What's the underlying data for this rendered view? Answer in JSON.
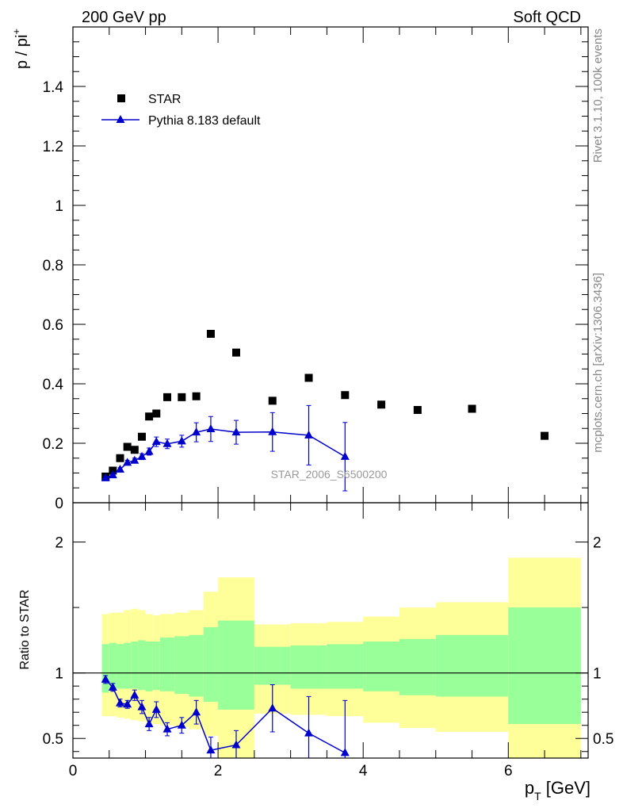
{
  "header": {
    "left": "200 GeV pp",
    "right": "Soft QCD"
  },
  "side_labels": {
    "rivet": "Rivet 3.1.10,  100k events",
    "source": "mcplots.cern.ch [arXiv:1306.3436]"
  },
  "watermark": "STAR_2006_S6500200",
  "colors": {
    "data": "#000000",
    "mc": "#0000cc",
    "band_inner": "#99ff99",
    "band_outer": "#ffff99"
  },
  "chart_data": [
    {
      "type": "scatter",
      "panel": "main",
      "ylabel_base": "p / pi",
      "ylabel_sup": "+",
      "xlim": [
        0,
        7.1
      ],
      "ylim": [
        0,
        1.6
      ],
      "yticks": [
        0,
        0.2,
        0.4,
        0.6,
        0.8,
        1,
        1.2,
        1.4
      ],
      "ytick_labels": [
        "0",
        "0.2",
        "0.4",
        "0.6",
        "0.8",
        "1",
        "1.2",
        "1.4"
      ],
      "legend": {
        "position": "top-left",
        "entries": [
          "STAR",
          "Pythia 8.183 default"
        ]
      },
      "series": [
        {
          "name": "STAR",
          "marker": "square",
          "x": [
            0.45,
            0.55,
            0.65,
            0.75,
            0.85,
            0.95,
            1.05,
            1.15,
            1.3,
            1.5,
            1.7,
            1.9,
            2.25,
            2.75,
            3.25,
            3.75,
            4.25,
            4.75,
            5.5,
            6.5
          ],
          "y": [
            0.088,
            0.108,
            0.15,
            0.188,
            0.178,
            0.222,
            0.29,
            0.3,
            0.355,
            0.355,
            0.358,
            0.568,
            0.505,
            0.343,
            0.42,
            0.362,
            0.33,
            0.312,
            0.316,
            0.225
          ]
        },
        {
          "name": "Pythia 8.183 default",
          "marker": "triangle",
          "x": [
            0.45,
            0.55,
            0.65,
            0.75,
            0.85,
            0.95,
            1.05,
            1.15,
            1.3,
            1.5,
            1.7,
            1.9,
            2.25,
            2.75,
            3.25,
            3.75
          ],
          "y": [
            0.083,
            0.093,
            0.112,
            0.135,
            0.142,
            0.155,
            0.172,
            0.205,
            0.198,
            0.207,
            0.237,
            0.248,
            0.237,
            0.238,
            0.227,
            0.155
          ],
          "yerr": [
            0.004,
            0.004,
            0.006,
            0.008,
            0.008,
            0.01,
            0.012,
            0.016,
            0.016,
            0.02,
            0.032,
            0.042,
            0.04,
            0.065,
            0.1,
            0.115
          ]
        }
      ]
    },
    {
      "type": "line",
      "panel": "ratio",
      "ylabel": "Ratio to STAR",
      "xlabel_base": "p",
      "xlabel_sub": "T",
      "xlabel_unit": " [GeV]",
      "xlim": [
        0,
        7.1
      ],
      "ylim": [
        0.35,
        2.3
      ],
      "xticks": [
        0,
        2,
        4,
        6
      ],
      "xtick_labels": [
        "0",
        "2",
        "4",
        "6"
      ],
      "yticks": [
        0.5,
        1,
        2
      ],
      "ytick_labels": [
        "0.5",
        "1",
        "2"
      ],
      "bands": {
        "edges": [
          0.4,
          0.5,
          0.6,
          0.7,
          0.8,
          0.9,
          1.0,
          1.1,
          1.2,
          1.4,
          1.6,
          1.8,
          2.0,
          2.5,
          3.0,
          3.5,
          4.0,
          4.5,
          5.0,
          6.0,
          7.0
        ],
        "inner_lo": [
          0.85,
          0.87,
          0.88,
          0.88,
          0.88,
          0.87,
          0.86,
          0.87,
          0.86,
          0.84,
          0.82,
          0.78,
          0.72,
          0.91,
          0.88,
          0.88,
          0.86,
          0.83,
          0.82,
          0.61
        ],
        "inner_hi": [
          1.22,
          1.23,
          1.22,
          1.23,
          1.24,
          1.25,
          1.24,
          1.24,
          1.27,
          1.28,
          1.29,
          1.35,
          1.4,
          1.2,
          1.21,
          1.22,
          1.24,
          1.26,
          1.29,
          1.5
        ],
        "outer_lo": [
          0.67,
          0.67,
          0.66,
          0.65,
          0.64,
          0.63,
          0.62,
          0.61,
          0.6,
          0.59,
          0.57,
          0.52,
          0.35,
          0.69,
          0.68,
          0.67,
          0.62,
          0.58,
          0.55,
          0.35
        ],
        "outer_hi": [
          1.45,
          1.46,
          1.46,
          1.48,
          1.49,
          1.48,
          1.45,
          1.44,
          1.45,
          1.46,
          1.48,
          1.62,
          1.73,
          1.37,
          1.38,
          1.39,
          1.43,
          1.5,
          1.54,
          1.88
        ]
      },
      "series": [
        {
          "name": "Pythia 8.183 default / STAR",
          "marker": "triangle",
          "x": [
            0.45,
            0.55,
            0.65,
            0.75,
            0.85,
            0.95,
            1.05,
            1.15,
            1.3,
            1.5,
            1.7,
            1.9,
            2.25,
            2.75,
            3.25,
            3.75
          ],
          "y": [
            0.95,
            0.89,
            0.77,
            0.76,
            0.83,
            0.74,
            0.61,
            0.72,
            0.57,
            0.6,
            0.7,
            0.41,
            0.45,
            0.73,
            0.54,
            0.39
          ],
          "yerr": [
            0.03,
            0.03,
            0.03,
            0.03,
            0.04,
            0.05,
            0.05,
            0.06,
            0.05,
            0.06,
            0.09,
            0.1,
            0.11,
            0.18,
            0.28,
            0.4
          ]
        }
      ]
    }
  ]
}
